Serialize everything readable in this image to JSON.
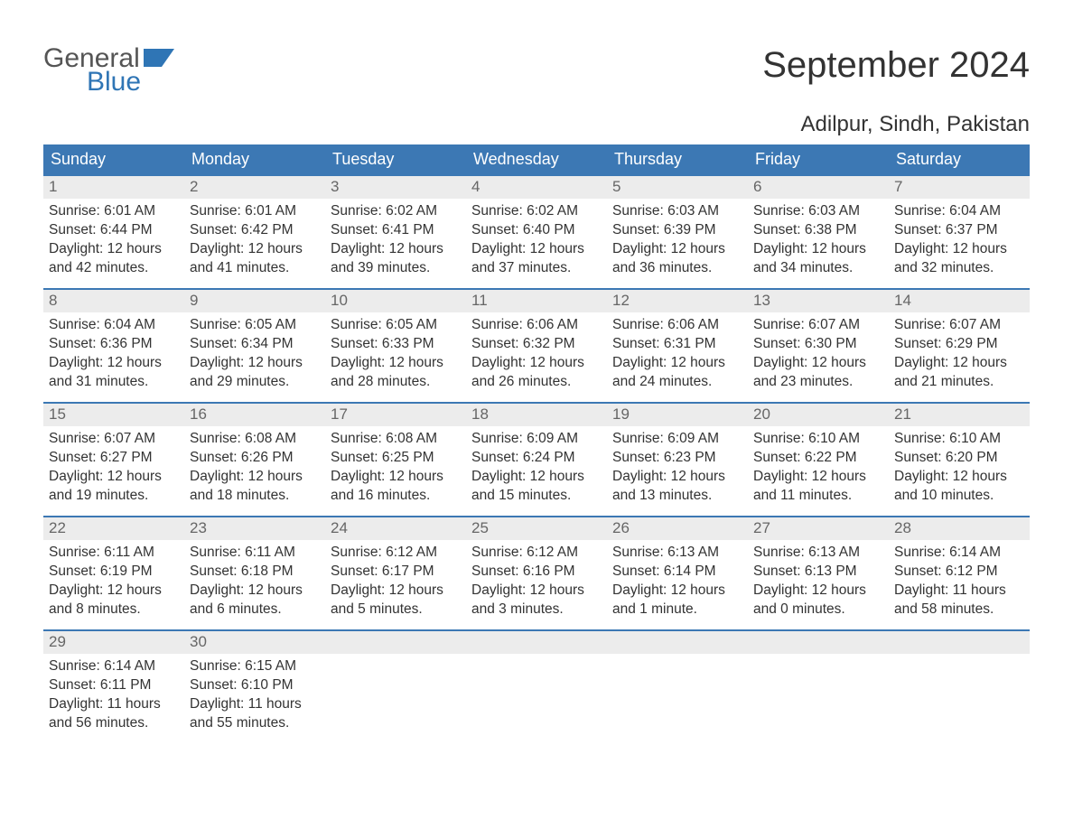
{
  "brand": {
    "line1": "General",
    "line2": "Blue",
    "flag_color": "#2f75b5",
    "text_gray": "#555555"
  },
  "title": "September 2024",
  "location": "Adilpur, Sindh, Pakistan",
  "colors": {
    "header_bg": "#3c78b4",
    "header_text": "#ffffff",
    "daynum_bg": "#ececec",
    "daynum_border": "#3c78b4",
    "daynum_text": "#666666",
    "body_text": "#333333",
    "page_bg": "#ffffff"
  },
  "typography": {
    "title_fontsize": 40,
    "location_fontsize": 24,
    "th_fontsize": 18,
    "cell_fontsize": 15.5
  },
  "weekdays": [
    "Sunday",
    "Monday",
    "Tuesday",
    "Wednesday",
    "Thursday",
    "Friday",
    "Saturday"
  ],
  "weeks": [
    [
      {
        "n": "1",
        "sunrise": "Sunrise: 6:01 AM",
        "sunset": "Sunset: 6:44 PM",
        "d1": "Daylight: 12 hours",
        "d2": "and 42 minutes."
      },
      {
        "n": "2",
        "sunrise": "Sunrise: 6:01 AM",
        "sunset": "Sunset: 6:42 PM",
        "d1": "Daylight: 12 hours",
        "d2": "and 41 minutes."
      },
      {
        "n": "3",
        "sunrise": "Sunrise: 6:02 AM",
        "sunset": "Sunset: 6:41 PM",
        "d1": "Daylight: 12 hours",
        "d2": "and 39 minutes."
      },
      {
        "n": "4",
        "sunrise": "Sunrise: 6:02 AM",
        "sunset": "Sunset: 6:40 PM",
        "d1": "Daylight: 12 hours",
        "d2": "and 37 minutes."
      },
      {
        "n": "5",
        "sunrise": "Sunrise: 6:03 AM",
        "sunset": "Sunset: 6:39 PM",
        "d1": "Daylight: 12 hours",
        "d2": "and 36 minutes."
      },
      {
        "n": "6",
        "sunrise": "Sunrise: 6:03 AM",
        "sunset": "Sunset: 6:38 PM",
        "d1": "Daylight: 12 hours",
        "d2": "and 34 minutes."
      },
      {
        "n": "7",
        "sunrise": "Sunrise: 6:04 AM",
        "sunset": "Sunset: 6:37 PM",
        "d1": "Daylight: 12 hours",
        "d2": "and 32 minutes."
      }
    ],
    [
      {
        "n": "8",
        "sunrise": "Sunrise: 6:04 AM",
        "sunset": "Sunset: 6:36 PM",
        "d1": "Daylight: 12 hours",
        "d2": "and 31 minutes."
      },
      {
        "n": "9",
        "sunrise": "Sunrise: 6:05 AM",
        "sunset": "Sunset: 6:34 PM",
        "d1": "Daylight: 12 hours",
        "d2": "and 29 minutes."
      },
      {
        "n": "10",
        "sunrise": "Sunrise: 6:05 AM",
        "sunset": "Sunset: 6:33 PM",
        "d1": "Daylight: 12 hours",
        "d2": "and 28 minutes."
      },
      {
        "n": "11",
        "sunrise": "Sunrise: 6:06 AM",
        "sunset": "Sunset: 6:32 PM",
        "d1": "Daylight: 12 hours",
        "d2": "and 26 minutes."
      },
      {
        "n": "12",
        "sunrise": "Sunrise: 6:06 AM",
        "sunset": "Sunset: 6:31 PM",
        "d1": "Daylight: 12 hours",
        "d2": "and 24 minutes."
      },
      {
        "n": "13",
        "sunrise": "Sunrise: 6:07 AM",
        "sunset": "Sunset: 6:30 PM",
        "d1": "Daylight: 12 hours",
        "d2": "and 23 minutes."
      },
      {
        "n": "14",
        "sunrise": "Sunrise: 6:07 AM",
        "sunset": "Sunset: 6:29 PM",
        "d1": "Daylight: 12 hours",
        "d2": "and 21 minutes."
      }
    ],
    [
      {
        "n": "15",
        "sunrise": "Sunrise: 6:07 AM",
        "sunset": "Sunset: 6:27 PM",
        "d1": "Daylight: 12 hours",
        "d2": "and 19 minutes."
      },
      {
        "n": "16",
        "sunrise": "Sunrise: 6:08 AM",
        "sunset": "Sunset: 6:26 PM",
        "d1": "Daylight: 12 hours",
        "d2": "and 18 minutes."
      },
      {
        "n": "17",
        "sunrise": "Sunrise: 6:08 AM",
        "sunset": "Sunset: 6:25 PM",
        "d1": "Daylight: 12 hours",
        "d2": "and 16 minutes."
      },
      {
        "n": "18",
        "sunrise": "Sunrise: 6:09 AM",
        "sunset": "Sunset: 6:24 PM",
        "d1": "Daylight: 12 hours",
        "d2": "and 15 minutes."
      },
      {
        "n": "19",
        "sunrise": "Sunrise: 6:09 AM",
        "sunset": "Sunset: 6:23 PM",
        "d1": "Daylight: 12 hours",
        "d2": "and 13 minutes."
      },
      {
        "n": "20",
        "sunrise": "Sunrise: 6:10 AM",
        "sunset": "Sunset: 6:22 PM",
        "d1": "Daylight: 12 hours",
        "d2": "and 11 minutes."
      },
      {
        "n": "21",
        "sunrise": "Sunrise: 6:10 AM",
        "sunset": "Sunset: 6:20 PM",
        "d1": "Daylight: 12 hours",
        "d2": "and 10 minutes."
      }
    ],
    [
      {
        "n": "22",
        "sunrise": "Sunrise: 6:11 AM",
        "sunset": "Sunset: 6:19 PM",
        "d1": "Daylight: 12 hours",
        "d2": "and 8 minutes."
      },
      {
        "n": "23",
        "sunrise": "Sunrise: 6:11 AM",
        "sunset": "Sunset: 6:18 PM",
        "d1": "Daylight: 12 hours",
        "d2": "and 6 minutes."
      },
      {
        "n": "24",
        "sunrise": "Sunrise: 6:12 AM",
        "sunset": "Sunset: 6:17 PM",
        "d1": "Daylight: 12 hours",
        "d2": "and 5 minutes."
      },
      {
        "n": "25",
        "sunrise": "Sunrise: 6:12 AM",
        "sunset": "Sunset: 6:16 PM",
        "d1": "Daylight: 12 hours",
        "d2": "and 3 minutes."
      },
      {
        "n": "26",
        "sunrise": "Sunrise: 6:13 AM",
        "sunset": "Sunset: 6:14 PM",
        "d1": "Daylight: 12 hours",
        "d2": "and 1 minute."
      },
      {
        "n": "27",
        "sunrise": "Sunrise: 6:13 AM",
        "sunset": "Sunset: 6:13 PM",
        "d1": "Daylight: 12 hours",
        "d2": "and 0 minutes."
      },
      {
        "n": "28",
        "sunrise": "Sunrise: 6:14 AM",
        "sunset": "Sunset: 6:12 PM",
        "d1": "Daylight: 11 hours",
        "d2": "and 58 minutes."
      }
    ],
    [
      {
        "n": "29",
        "sunrise": "Sunrise: 6:14 AM",
        "sunset": "Sunset: 6:11 PM",
        "d1": "Daylight: 11 hours",
        "d2": "and 56 minutes."
      },
      {
        "n": "30",
        "sunrise": "Sunrise: 6:15 AM",
        "sunset": "Sunset: 6:10 PM",
        "d1": "Daylight: 11 hours",
        "d2": "and 55 minutes."
      },
      {
        "empty": true
      },
      {
        "empty": true
      },
      {
        "empty": true
      },
      {
        "empty": true
      },
      {
        "empty": true
      }
    ]
  ]
}
